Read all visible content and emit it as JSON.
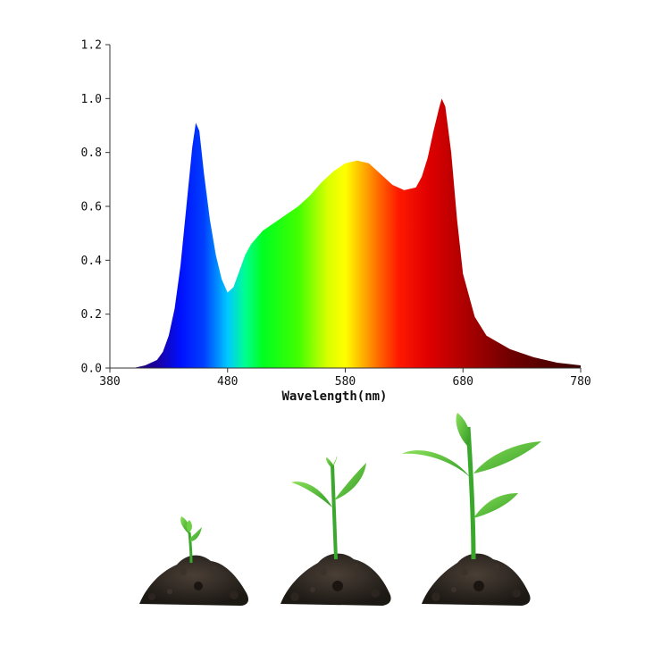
{
  "chart_data": {
    "type": "area",
    "title": "",
    "xlabel": "Wavelength(nm)",
    "ylabel": "",
    "xlim": [
      380,
      780
    ],
    "ylim": [
      0,
      1.2
    ],
    "x_ticks": [
      380,
      480,
      580,
      680,
      780
    ],
    "y_ticks": [
      "0.0",
      "0.2",
      "0.4",
      "0.6",
      "0.8",
      "1.0",
      "1.2"
    ],
    "grid": false,
    "legend": "none",
    "fill": "visible-spectrum gradient",
    "x": [
      380,
      400,
      410,
      420,
      425,
      430,
      435,
      440,
      445,
      450,
      453,
      456,
      460,
      465,
      470,
      475,
      480,
      485,
      490,
      495,
      500,
      510,
      520,
      530,
      540,
      550,
      560,
      570,
      580,
      590,
      600,
      610,
      620,
      630,
      640,
      645,
      650,
      655,
      660,
      662,
      665,
      670,
      675,
      680,
      690,
      700,
      720,
      740,
      760,
      780
    ],
    "values": [
      0,
      0,
      0.01,
      0.03,
      0.06,
      0.12,
      0.22,
      0.38,
      0.6,
      0.82,
      0.91,
      0.88,
      0.72,
      0.55,
      0.42,
      0.33,
      0.28,
      0.3,
      0.36,
      0.42,
      0.46,
      0.51,
      0.54,
      0.57,
      0.6,
      0.64,
      0.69,
      0.73,
      0.76,
      0.77,
      0.76,
      0.72,
      0.68,
      0.66,
      0.67,
      0.71,
      0.78,
      0.88,
      0.97,
      1.0,
      0.97,
      0.8,
      0.55,
      0.35,
      0.19,
      0.12,
      0.07,
      0.04,
      0.02,
      0.01
    ]
  },
  "colors": {
    "axis": "#333333",
    "soil": "#2a2420",
    "stem": "#3aa82c",
    "leaf": "#5cc43a"
  },
  "illustration": {
    "plants": [
      "sprout-small",
      "sprout-medium",
      "sprout-large"
    ]
  }
}
